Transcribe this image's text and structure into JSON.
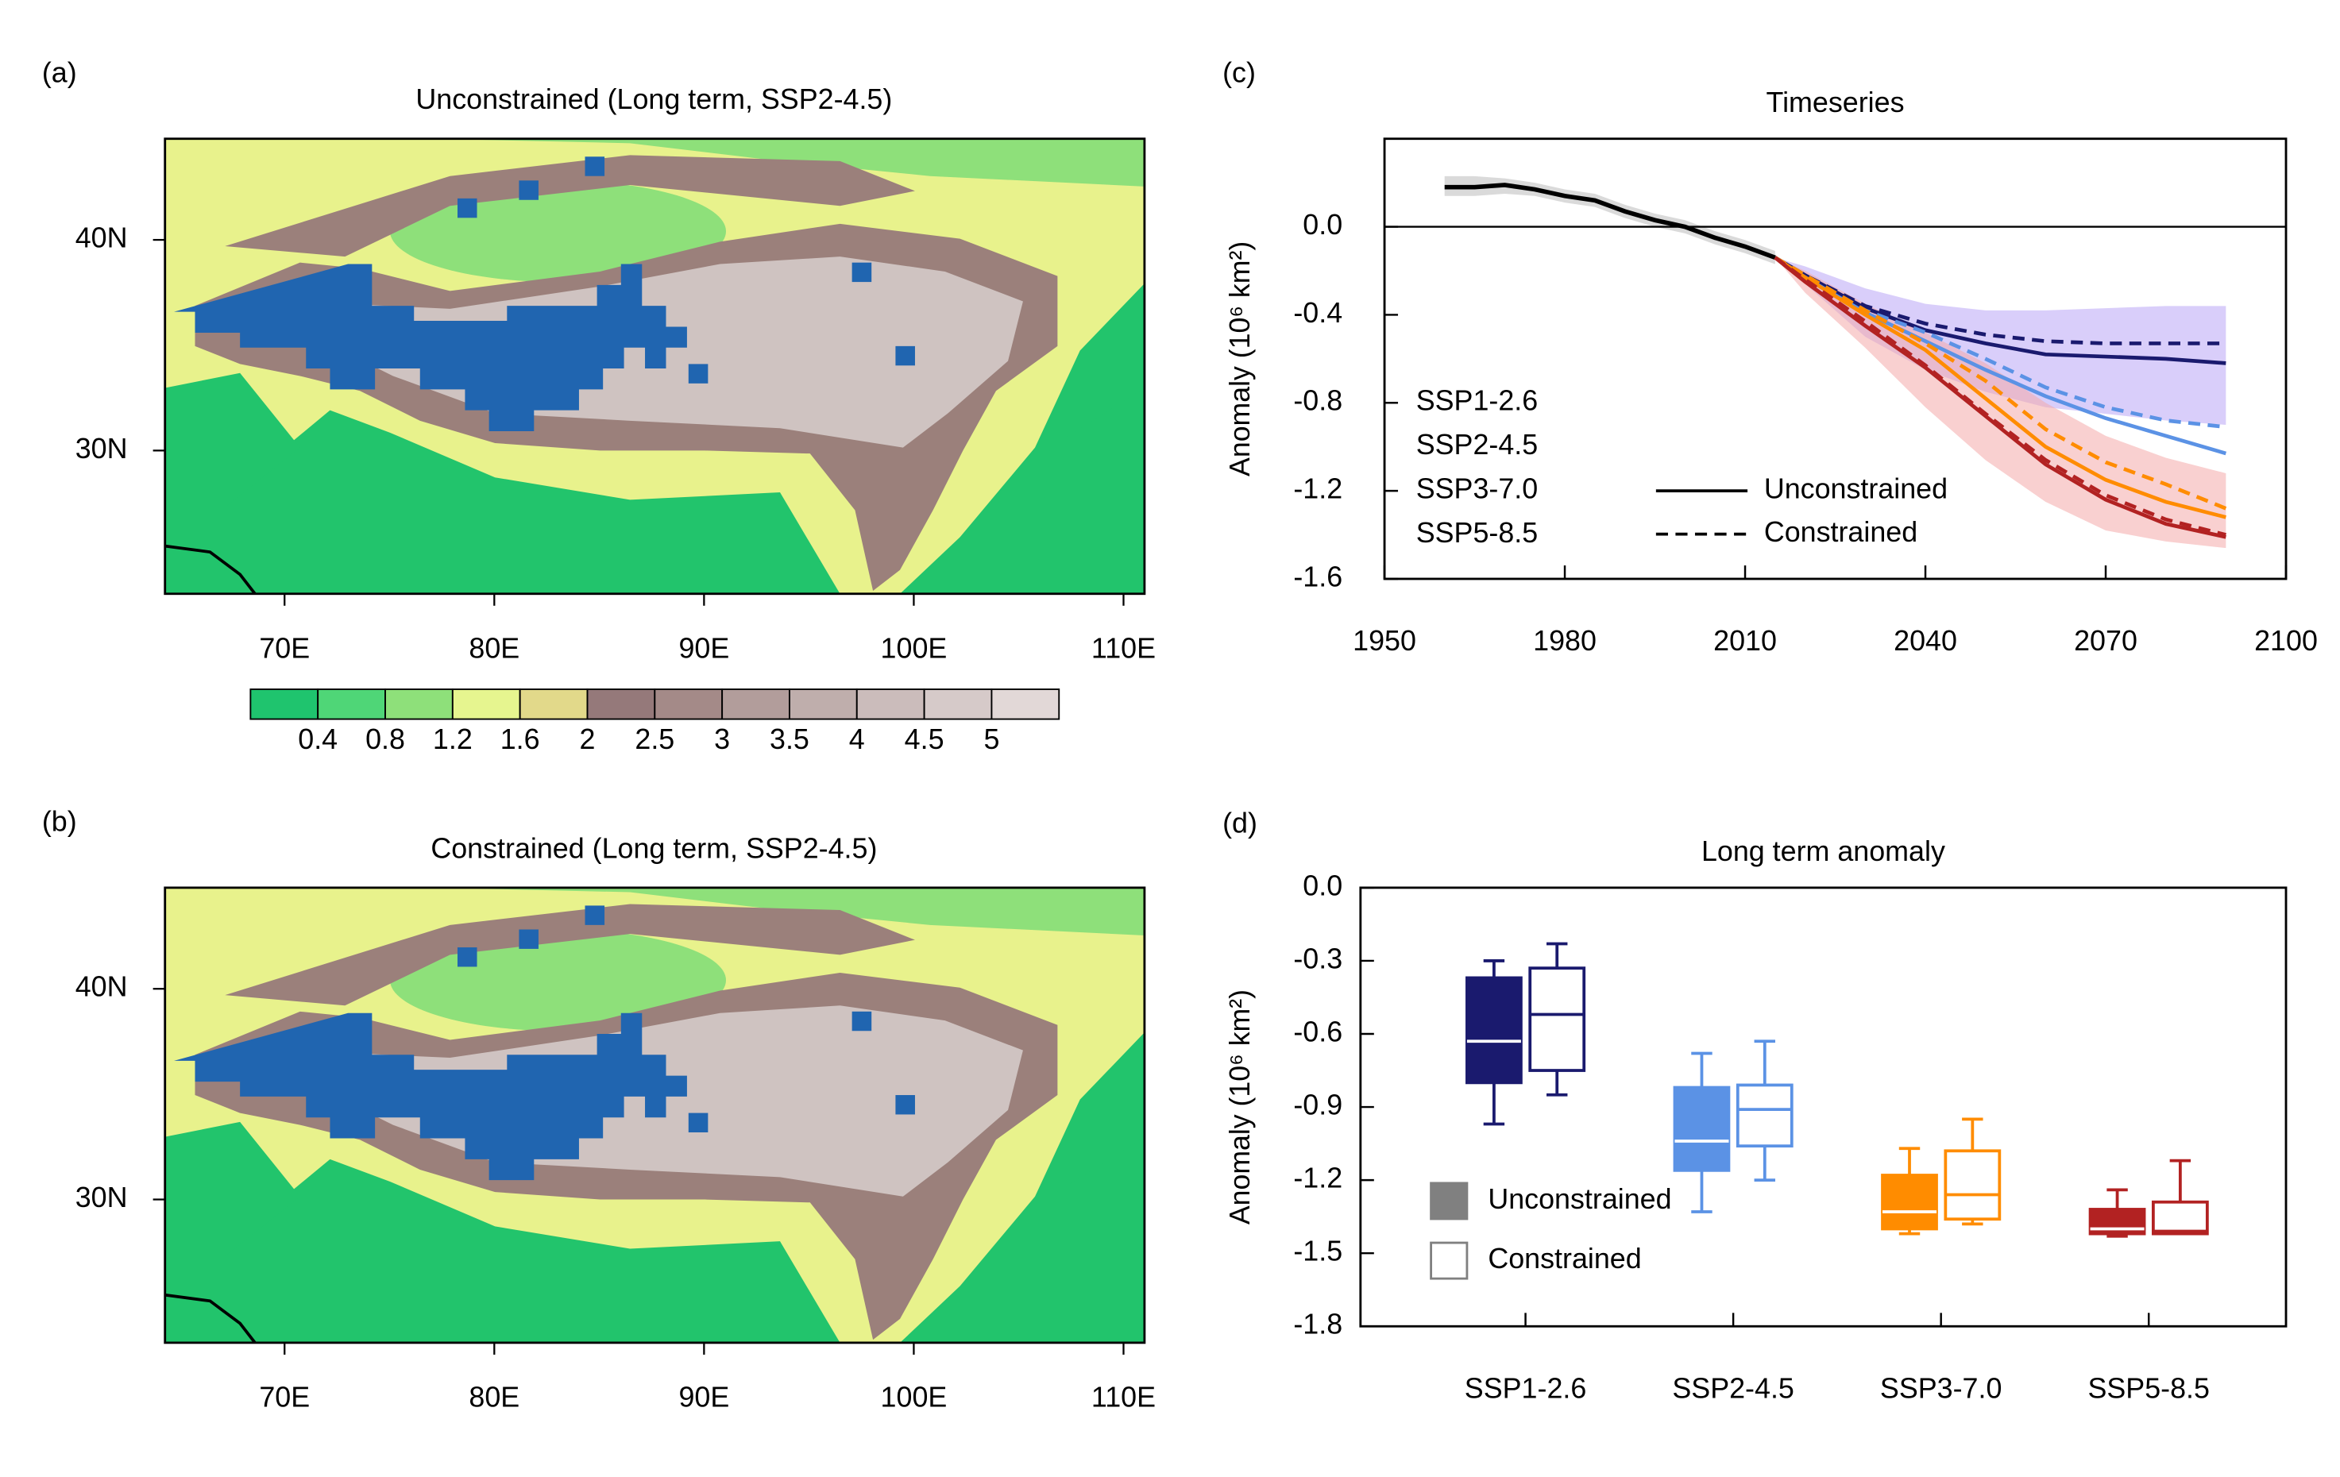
{
  "chart_data": [
    {
      "type": "map",
      "panel_label": "(a)",
      "title": "Unconstrained (Long term, SSP2-4.5)",
      "xlim": [
        64.3,
        111
      ],
      "ylim": [
        23.2,
        44.8
      ],
      "xticks": [
        {
          "value": 70,
          "label": "70E"
        },
        {
          "value": 80,
          "label": "80E"
        },
        {
          "value": 90,
          "label": "90E"
        },
        {
          "value": 100,
          "label": "100E"
        },
        {
          "value": 110,
          "label": "110E"
        }
      ],
      "yticks": [
        {
          "value": 30,
          "label": "30N"
        },
        {
          "value": 40,
          "label": "40N"
        }
      ],
      "colorbar": {
        "levels": [
          0.4,
          0.8,
          1.2,
          1.6,
          2,
          2.5,
          3,
          3.5,
          4,
          4.5,
          5
        ],
        "colors": [
          "#1fc46e",
          "#4fd677",
          "#8ee07a",
          "#e6f58f",
          "#e2d98a",
          "#95797a",
          "#a48a88",
          "#b29d9b",
          "#bfaeac",
          "#cbbcbb",
          "#d6cac9",
          "#e2d8d7"
        ]
      }
    },
    {
      "type": "map",
      "panel_label": "(b)",
      "title": "Constrained (Long term, SSP2-4.5)",
      "xlim": [
        64.3,
        111
      ],
      "ylim": [
        23.2,
        44.8
      ],
      "xticks": [
        {
          "value": 70,
          "label": "70E"
        },
        {
          "value": 80,
          "label": "80E"
        },
        {
          "value": 90,
          "label": "90E"
        },
        {
          "value": 100,
          "label": "100E"
        },
        {
          "value": 110,
          "label": "110E"
        }
      ],
      "yticks": [
        {
          "value": 30,
          "label": "30N"
        },
        {
          "value": 40,
          "label": "40N"
        }
      ]
    },
    {
      "type": "line",
      "panel_label": "(c)",
      "title": "Timeseries",
      "y_label": "Anomaly (10⁶ km²)",
      "xlim": [
        1950,
        2100
      ],
      "ylim": [
        -1.6,
        0.4
      ],
      "xticks": [
        1950,
        1980,
        2010,
        2040,
        2070,
        2100
      ],
      "yticks": [
        -1.6,
        -1.2,
        -0.8,
        -0.4,
        {
          "value": 0,
          "label": "0.0"
        }
      ],
      "reference_line": 0,
      "historical": {
        "color": "#000000",
        "band_color": "#bbbbbb",
        "x": [
          1960,
          1965,
          1970,
          1975,
          1980,
          1985,
          1990,
          1995,
          2000,
          2005,
          2010,
          2015
        ],
        "values": [
          0.18,
          0.18,
          0.19,
          0.17,
          0.14,
          0.12,
          0.07,
          0.03,
          0.0,
          -0.05,
          -0.09,
          -0.14
        ],
        "lower": [
          0.14,
          0.14,
          0.15,
          0.14,
          0.11,
          0.09,
          0.04,
          0.0,
          -0.03,
          -0.08,
          -0.12,
          -0.17
        ],
        "upper": [
          0.23,
          0.23,
          0.22,
          0.2,
          0.17,
          0.15,
          0.1,
          0.06,
          0.03,
          -0.02,
          -0.06,
          -0.11
        ]
      },
      "x": [
        2015,
        2020,
        2030,
        2040,
        2050,
        2060,
        2070,
        2080,
        2090
      ],
      "series": [
        {
          "name": "SSP1-2.6",
          "color": "#1a1a6e",
          "band_color": "#b9a6f5",
          "values": [
            -0.14,
            -0.22,
            -0.37,
            -0.47,
            -0.53,
            -0.58,
            -0.59,
            -0.6,
            -0.62
          ],
          "constrained_values": [
            -0.14,
            -0.22,
            -0.36,
            -0.44,
            -0.49,
            -0.52,
            -0.53,
            -0.53,
            -0.53
          ],
          "lower": [
            -0.14,
            -0.26,
            -0.5,
            -0.65,
            -0.75,
            -0.82,
            -0.85,
            -0.88,
            -0.9
          ],
          "upper": [
            -0.14,
            -0.18,
            -0.28,
            -0.35,
            -0.38,
            -0.38,
            -0.37,
            -0.36,
            -0.36
          ]
        },
        {
          "name": "SSP2-4.5",
          "color": "#5b92e5",
          "values": [
            -0.14,
            -0.23,
            -0.39,
            -0.52,
            -0.65,
            -0.77,
            -0.87,
            -0.95,
            -1.03
          ],
          "constrained_values": [
            -0.14,
            -0.22,
            -0.38,
            -0.48,
            -0.6,
            -0.73,
            -0.82,
            -0.88,
            -0.91
          ]
        },
        {
          "name": "SSP3-7.0",
          "color": "#ff8c00",
          "values": [
            -0.14,
            -0.23,
            -0.4,
            -0.56,
            -0.78,
            -1.0,
            -1.15,
            -1.25,
            -1.32
          ],
          "constrained_values": [
            -0.14,
            -0.22,
            -0.38,
            -0.53,
            -0.7,
            -0.92,
            -1.07,
            -1.17,
            -1.28
          ]
        },
        {
          "name": "SSP5-8.5",
          "color": "#b22222",
          "band_color": "#f4a9a9",
          "values": [
            -0.14,
            -0.25,
            -0.45,
            -0.64,
            -0.86,
            -1.08,
            -1.24,
            -1.35,
            -1.41
          ],
          "constrained_values": [
            -0.14,
            -0.24,
            -0.43,
            -0.63,
            -0.85,
            -1.06,
            -1.22,
            -1.33,
            -1.4
          ],
          "lower": [
            -0.14,
            -0.3,
            -0.55,
            -0.82,
            -1.06,
            -1.25,
            -1.38,
            -1.43,
            -1.46
          ],
          "upper": [
            -0.14,
            -0.2,
            -0.35,
            -0.48,
            -0.62,
            -0.8,
            -0.95,
            -1.05,
            -1.12
          ]
        }
      ],
      "line_styles": [
        "Unconstrained",
        "Constrained"
      ]
    },
    {
      "type": "box",
      "panel_label": "(d)",
      "title": "Long term anomaly",
      "y_label": "Anomaly (10⁶ km²)",
      "ylim": [
        -1.8,
        0.0
      ],
      "yticks": [
        -1.8,
        -1.5,
        -1.2,
        -0.9,
        -0.6,
        -0.3,
        {
          "value": 0,
          "label": "0.0"
        }
      ],
      "categories": [
        "SSP1-2.6",
        "SSP2-4.5",
        "SSP3-7.0",
        "SSP5-8.5"
      ],
      "category_colors": [
        "#1a1a6e",
        "#5b92e5",
        "#ff8c00",
        "#b22222"
      ],
      "series": [
        {
          "name": "Unconstrained",
          "filled": true,
          "legend_color": "#808080",
          "min": [
            -0.97,
            -1.33,
            -1.42,
            -1.43
          ],
          "q1": [
            -0.8,
            -1.16,
            -1.4,
            -1.42
          ],
          "median": [
            -0.63,
            -1.04,
            -1.33,
            -1.4
          ],
          "q3": [
            -0.37,
            -0.82,
            -1.18,
            -1.32
          ],
          "max": [
            -0.3,
            -0.68,
            -1.07,
            -1.24
          ]
        },
        {
          "name": "Constrained",
          "filled": false,
          "legend_color": "#808080",
          "min": [
            -0.85,
            -1.2,
            -1.38,
            -1.42
          ],
          "q1": [
            -0.75,
            -1.06,
            -1.36,
            -1.42
          ],
          "median": [
            -0.52,
            -0.91,
            -1.26,
            -1.41
          ],
          "q3": [
            -0.33,
            -0.81,
            -1.08,
            -1.29
          ],
          "max": [
            -0.23,
            -0.63,
            -0.95,
            -1.12
          ]
        }
      ]
    }
  ]
}
